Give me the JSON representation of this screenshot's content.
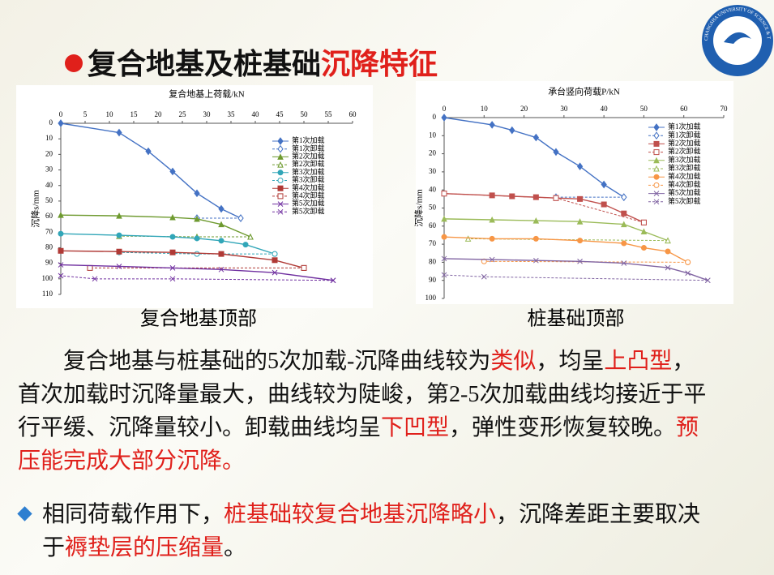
{
  "title": [
    {
      "text": "复合地基及桩基础"
    },
    {
      "text": "沉降特征",
      "color": "#e0201b"
    }
  ],
  "logo": {
    "text": "CHANGSHA UNIVERSITY OF SCIENCE & TECHNOLOGY"
  },
  "chart_data": [
    {
      "type": "line",
      "x_label": "复合地基上荷载/kN",
      "y_label": "沉降s/mm",
      "caption": "复合地基顶部",
      "xlim": [
        0,
        60
      ],
      "xticks": [
        0,
        5,
        10,
        15,
        20,
        25,
        30,
        35,
        40,
        45,
        50,
        55,
        60
      ],
      "ylim": [
        0,
        110
      ],
      "yticks": [
        0,
        10,
        20,
        30,
        40,
        50,
        60,
        70,
        80,
        90,
        100,
        110
      ],
      "y_inverted": true,
      "x_axis_top": true,
      "series": [
        {
          "name": "第1次加载",
          "color": "#4472c4",
          "marker": "diamond",
          "dash": false,
          "x": [
            0,
            12,
            18,
            23,
            28,
            33,
            37
          ],
          "values": [
            0,
            6,
            18,
            31,
            45,
            55,
            61
          ]
        },
        {
          "name": "第1次卸载",
          "color": "#4472c4",
          "marker": "diamond",
          "dash": true,
          "x": [
            37,
            28
          ],
          "values": [
            61,
            61
          ]
        },
        {
          "name": "第2次加载",
          "color": "#6e9a2f",
          "marker": "triangle",
          "dash": false,
          "x": [
            0,
            12,
            23,
            28,
            33,
            39
          ],
          "values": [
            59,
            59.5,
            60.5,
            61.5,
            65,
            73
          ]
        },
        {
          "name": "第2次卸载",
          "color": "#6e9a2f",
          "marker": "triangle",
          "dash": true,
          "x": [
            39,
            28,
            12
          ],
          "values": [
            73,
            73,
            72.5
          ]
        },
        {
          "name": "第3次加载",
          "color": "#31a6b8",
          "marker": "circle",
          "dash": false,
          "x": [
            0,
            12,
            23,
            28,
            33,
            38,
            44
          ],
          "values": [
            71,
            72,
            73,
            74,
            75.5,
            78,
            84
          ]
        },
        {
          "name": "第3次卸载",
          "color": "#31a6b8",
          "marker": "circle",
          "dash": true,
          "x": [
            44,
            28,
            12
          ],
          "values": [
            84,
            84,
            83
          ]
        },
        {
          "name": "第4次加载",
          "color": "#b03a36",
          "marker": "square",
          "dash": false,
          "x": [
            0,
            12,
            23,
            33,
            44,
            50
          ],
          "values": [
            82,
            82.5,
            83,
            84,
            88,
            93
          ]
        },
        {
          "name": "第4次卸载",
          "color": "#b03a36",
          "marker": "square",
          "dash": true,
          "x": [
            50,
            6
          ],
          "values": [
            93,
            93
          ]
        },
        {
          "name": "第5次加载",
          "color": "#7030a0",
          "marker": "x",
          "dash": false,
          "x": [
            0,
            12,
            23,
            33,
            44,
            56
          ],
          "values": [
            91,
            92,
            93,
            94,
            96,
            101
          ]
        },
        {
          "name": "第5次卸载",
          "color": "#7030a0",
          "marker": "x",
          "dash": true,
          "x": [
            56,
            23,
            7,
            0
          ],
          "values": [
            101,
            100,
            100,
            98
          ]
        }
      ]
    },
    {
      "type": "line",
      "x_label": "承台竖向荷载P/kN",
      "y_label": "沉降s/mm",
      "caption": "桩基础顶部",
      "xlim": [
        0,
        70
      ],
      "xticks": [
        0,
        10,
        20,
        30,
        40,
        50,
        60,
        70
      ],
      "ylim": [
        0,
        100
      ],
      "yticks": [
        0,
        10,
        20,
        30,
        40,
        50,
        60,
        70,
        80,
        90,
        100
      ],
      "y_inverted": true,
      "x_axis_top": true,
      "series": [
        {
          "name": "第1次加载",
          "color": "#4472c4",
          "marker": "diamond",
          "dash": false,
          "x": [
            0,
            12,
            17,
            23,
            28,
            34,
            40,
            45
          ],
          "values": [
            0,
            4,
            7,
            11,
            19,
            27,
            37,
            44
          ]
        },
        {
          "name": "第1次卸载",
          "color": "#4472c4",
          "marker": "diamond",
          "dash": true,
          "x": [
            45,
            28
          ],
          "values": [
            44,
            44
          ]
        },
        {
          "name": "第2次加载",
          "color": "#c0504d",
          "marker": "square",
          "dash": false,
          "x": [
            0,
            12,
            17,
            23,
            28,
            34,
            40,
            45,
            50
          ],
          "values": [
            42,
            43,
            43.5,
            44,
            44.5,
            45,
            48,
            53,
            58
          ]
        },
        {
          "name": "第2次卸载",
          "color": "#c0504d",
          "marker": "square",
          "dash": true,
          "x": [
            50,
            28,
            0
          ],
          "values": [
            58,
            44.5,
            42
          ]
        },
        {
          "name": "第3次加载",
          "color": "#9bbb59",
          "marker": "triangle",
          "dash": false,
          "x": [
            0,
            12,
            23,
            34,
            45,
            50,
            56
          ],
          "values": [
            56,
            56.5,
            57,
            57.5,
            59,
            63,
            68
          ]
        },
        {
          "name": "第3次卸载",
          "color": "#9bbb59",
          "marker": "triangle",
          "dash": true,
          "x": [
            56,
            6
          ],
          "values": [
            68,
            67
          ]
        },
        {
          "name": "第4次加载",
          "color": "#f79646",
          "marker": "circle",
          "dash": false,
          "x": [
            0,
            12,
            23,
            34,
            45,
            50,
            56,
            61
          ],
          "values": [
            66,
            67,
            67,
            68,
            69.5,
            72,
            74,
            80
          ]
        },
        {
          "name": "第4次卸载",
          "color": "#f79646",
          "marker": "circle",
          "dash": true,
          "x": [
            61,
            10
          ],
          "values": [
            80,
            79.5
          ]
        },
        {
          "name": "第5次加载",
          "color": "#8064a2",
          "marker": "x",
          "dash": false,
          "x": [
            0,
            12,
            23,
            34,
            45,
            56,
            61,
            66
          ],
          "values": [
            78,
            78.5,
            79,
            79.5,
            80.5,
            83,
            86,
            90
          ]
        },
        {
          "name": "第5次卸载",
          "color": "#8064a2",
          "marker": "x",
          "dash": true,
          "x": [
            66,
            10,
            0
          ],
          "values": [
            90,
            88,
            87
          ]
        }
      ]
    }
  ],
  "paragraphs": [
    [
      {
        "text": "复合地基与桩基础的5次加载-沉降曲线较为"
      },
      {
        "text": "类似",
        "color": "#e0201b"
      },
      {
        "text": "，均呈"
      },
      {
        "text": "上凸型",
        "color": "#e0201b"
      },
      {
        "text": "，首次加载时沉降量最大，曲线较为陡峻，第2-5次加载曲线均接近于平行平缓、沉降量较小。卸载曲线均呈"
      },
      {
        "text": "下凹型",
        "color": "#e0201b"
      },
      {
        "text": "，弹性变形恢复较晚。"
      },
      {
        "text": "预压能完成大部分沉降。",
        "color": "#e0201b"
      }
    ],
    [
      {
        "text": "相同荷载作用下，"
      },
      {
        "text": "桩基础较复合地基沉降略小",
        "color": "#e0201b"
      },
      {
        "text": "，沉降差距主要取决于"
      },
      {
        "text": "褥垫层的压缩量",
        "color": "#e0201b"
      },
      {
        "text": "。"
      }
    ]
  ]
}
